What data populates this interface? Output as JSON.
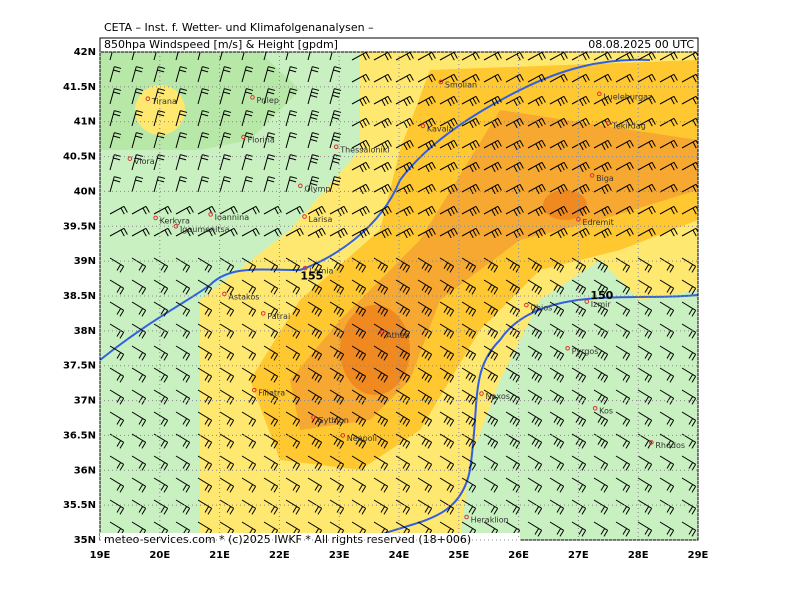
{
  "header": {
    "institute": "CETA – Inst. f. Wetter- und Klimafolgenanalysen –",
    "title": "850hpa Windspeed [m/s] & Height [gpdm]",
    "date": "08.08.2025 00 UTC"
  },
  "footer": "meteo-services.com * (c)2025 IWKF * All rights reserved (18+006)",
  "x_axis": [
    {
      "value": 19,
      "label": "19E"
    },
    {
      "value": 20,
      "label": "20E"
    },
    {
      "value": 21,
      "label": "21E"
    },
    {
      "value": 22,
      "label": "22E"
    },
    {
      "value": 23,
      "label": "23E"
    },
    {
      "value": 24,
      "label": "24E"
    },
    {
      "value": 25,
      "label": "25E"
    },
    {
      "value": 26,
      "label": "26E"
    },
    {
      "value": 27,
      "label": "27E"
    },
    {
      "value": 28,
      "label": "28E"
    },
    {
      "value": 29,
      "label": "29E"
    }
  ],
  "y_axis": [
    {
      "value": 35,
      "label": "35N"
    },
    {
      "value": 35.5,
      "label": "35.5N"
    },
    {
      "value": 36,
      "label": "36N"
    },
    {
      "value": 36.5,
      "label": "36.5N"
    },
    {
      "value": 37,
      "label": "37N"
    },
    {
      "value": 37.5,
      "label": "37.5N"
    },
    {
      "value": 38,
      "label": "38N"
    },
    {
      "value": 38.5,
      "label": "38.5N"
    },
    {
      "value": 39,
      "label": "39N"
    },
    {
      "value": 39.5,
      "label": "39.5N"
    },
    {
      "value": 40,
      "label": "40N"
    },
    {
      "value": 40.5,
      "label": "40.5N"
    },
    {
      "value": 41,
      "label": "41N"
    },
    {
      "value": 41.5,
      "label": "41.5N"
    },
    {
      "value": 42,
      "label": "42N"
    }
  ],
  "cities": [
    {
      "name": "Tirana",
      "lon": 19.8,
      "lat": 41.33
    },
    {
      "name": "Prilep",
      "lon": 21.55,
      "lat": 41.35
    },
    {
      "name": "Florina",
      "lon": 21.4,
      "lat": 40.78
    },
    {
      "name": "Thessaloniki",
      "lon": 22.95,
      "lat": 40.64
    },
    {
      "name": "Vlora",
      "lon": 19.5,
      "lat": 40.47
    },
    {
      "name": "Kerkyra",
      "lon": 19.93,
      "lat": 39.62
    },
    {
      "name": "Ioannina",
      "lon": 20.85,
      "lat": 39.67
    },
    {
      "name": "Igoumenitsa",
      "lon": 20.27,
      "lat": 39.5
    },
    {
      "name": "Larisa",
      "lon": 22.42,
      "lat": 39.64
    },
    {
      "name": "Olymp",
      "lon": 22.35,
      "lat": 40.08
    },
    {
      "name": "Smolian",
      "lon": 24.7,
      "lat": 41.57
    },
    {
      "name": "Kavala",
      "lon": 24.4,
      "lat": 40.94
    },
    {
      "name": "Lueleburgaz",
      "lon": 27.35,
      "lat": 41.4
    },
    {
      "name": "Tekirdag",
      "lon": 27.5,
      "lat": 40.98
    },
    {
      "name": "Biga",
      "lon": 27.23,
      "lat": 40.23
    },
    {
      "name": "Edremit",
      "lon": 27.0,
      "lat": 39.6
    },
    {
      "name": "Lamia",
      "lon": 22.43,
      "lat": 38.9
    },
    {
      "name": "Astakos",
      "lon": 21.08,
      "lat": 38.53
    },
    {
      "name": "Patrai",
      "lon": 21.73,
      "lat": 38.25
    },
    {
      "name": "Athen",
      "lon": 23.72,
      "lat": 37.98
    },
    {
      "name": "Chios",
      "lon": 26.13,
      "lat": 38.37
    },
    {
      "name": "Izmir",
      "lon": 27.14,
      "lat": 38.42
    },
    {
      "name": "Pyrgos",
      "lon": 26.82,
      "lat": 37.75
    },
    {
      "name": "Filiatra",
      "lon": 21.58,
      "lat": 37.15
    },
    {
      "name": "Gythion",
      "lon": 22.57,
      "lat": 36.76
    },
    {
      "name": "Neapoli",
      "lon": 23.06,
      "lat": 36.5
    },
    {
      "name": "Naxos",
      "lon": 25.38,
      "lat": 37.1
    },
    {
      "name": "Kos",
      "lon": 27.28,
      "lat": 36.89
    },
    {
      "name": "Heraklion",
      "lon": 25.13,
      "lat": 35.33
    },
    {
      "name": "Rhodos",
      "lon": 28.22,
      "lat": 36.4
    }
  ],
  "contour_labels": [
    {
      "text": "155",
      "lon": 22.35,
      "lat": 38.78
    },
    {
      "text": "150",
      "lon": 27.2,
      "lat": 38.5
    }
  ]
}
